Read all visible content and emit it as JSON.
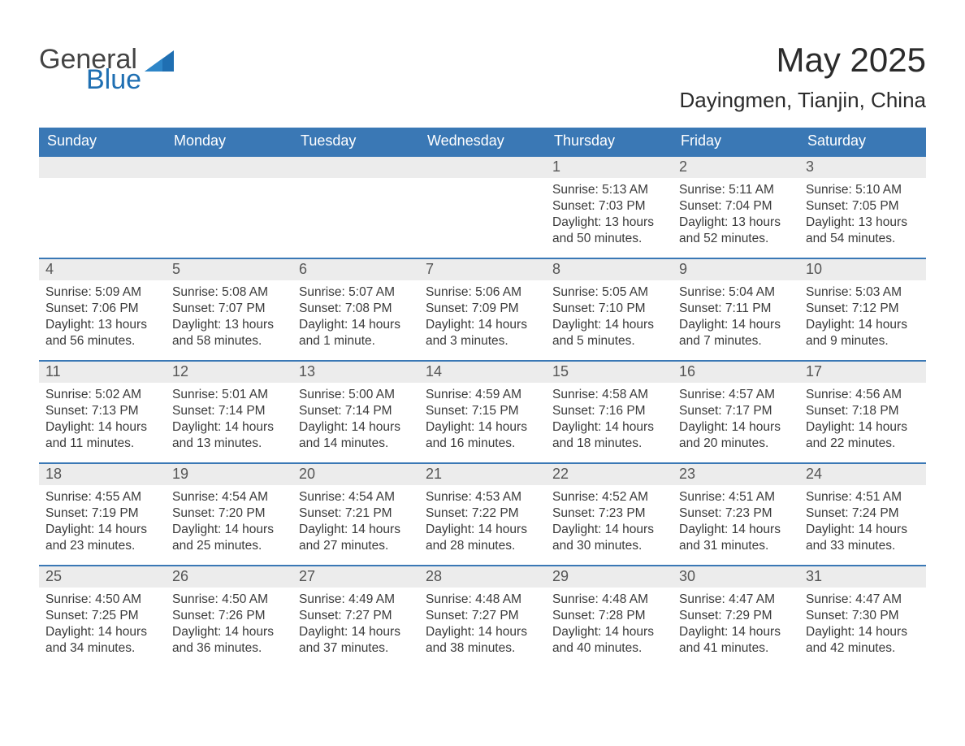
{
  "logo": {
    "word1": "General",
    "word2": "Blue"
  },
  "colors": {
    "header_bg": "#3a78b5",
    "header_text": "#ffffff",
    "daynum_bg": "#ececec",
    "text": "#3a3a3a",
    "logo_tri": "#1f6fb2",
    "week_border": "#3a78b5"
  },
  "title": "May 2025",
  "location": "Dayingmen, Tianjin, China",
  "days_of_week": [
    "Sunday",
    "Monday",
    "Tuesday",
    "Wednesday",
    "Thursday",
    "Friday",
    "Saturday"
  ],
  "weeks": [
    [
      {
        "empty": true
      },
      {
        "empty": true
      },
      {
        "empty": true
      },
      {
        "empty": true
      },
      {
        "n": "1",
        "sunrise": "5:13 AM",
        "sunset": "7:03 PM",
        "daylight": "13 hours and 50 minutes."
      },
      {
        "n": "2",
        "sunrise": "5:11 AM",
        "sunset": "7:04 PM",
        "daylight": "13 hours and 52 minutes."
      },
      {
        "n": "3",
        "sunrise": "5:10 AM",
        "sunset": "7:05 PM",
        "daylight": "13 hours and 54 minutes."
      }
    ],
    [
      {
        "n": "4",
        "sunrise": "5:09 AM",
        "sunset": "7:06 PM",
        "daylight": "13 hours and 56 minutes."
      },
      {
        "n": "5",
        "sunrise": "5:08 AM",
        "sunset": "7:07 PM",
        "daylight": "13 hours and 58 minutes."
      },
      {
        "n": "6",
        "sunrise": "5:07 AM",
        "sunset": "7:08 PM",
        "daylight": "14 hours and 1 minute."
      },
      {
        "n": "7",
        "sunrise": "5:06 AM",
        "sunset": "7:09 PM",
        "daylight": "14 hours and 3 minutes."
      },
      {
        "n": "8",
        "sunrise": "5:05 AM",
        "sunset": "7:10 PM",
        "daylight": "14 hours and 5 minutes."
      },
      {
        "n": "9",
        "sunrise": "5:04 AM",
        "sunset": "7:11 PM",
        "daylight": "14 hours and 7 minutes."
      },
      {
        "n": "10",
        "sunrise": "5:03 AM",
        "sunset": "7:12 PM",
        "daylight": "14 hours and 9 minutes."
      }
    ],
    [
      {
        "n": "11",
        "sunrise": "5:02 AM",
        "sunset": "7:13 PM",
        "daylight": "14 hours and 11 minutes."
      },
      {
        "n": "12",
        "sunrise": "5:01 AM",
        "sunset": "7:14 PM",
        "daylight": "14 hours and 13 minutes."
      },
      {
        "n": "13",
        "sunrise": "5:00 AM",
        "sunset": "7:14 PM",
        "daylight": "14 hours and 14 minutes."
      },
      {
        "n": "14",
        "sunrise": "4:59 AM",
        "sunset": "7:15 PM",
        "daylight": "14 hours and 16 minutes."
      },
      {
        "n": "15",
        "sunrise": "4:58 AM",
        "sunset": "7:16 PM",
        "daylight": "14 hours and 18 minutes."
      },
      {
        "n": "16",
        "sunrise": "4:57 AM",
        "sunset": "7:17 PM",
        "daylight": "14 hours and 20 minutes."
      },
      {
        "n": "17",
        "sunrise": "4:56 AM",
        "sunset": "7:18 PM",
        "daylight": "14 hours and 22 minutes."
      }
    ],
    [
      {
        "n": "18",
        "sunrise": "4:55 AM",
        "sunset": "7:19 PM",
        "daylight": "14 hours and 23 minutes."
      },
      {
        "n": "19",
        "sunrise": "4:54 AM",
        "sunset": "7:20 PM",
        "daylight": "14 hours and 25 minutes."
      },
      {
        "n": "20",
        "sunrise": "4:54 AM",
        "sunset": "7:21 PM",
        "daylight": "14 hours and 27 minutes."
      },
      {
        "n": "21",
        "sunrise": "4:53 AM",
        "sunset": "7:22 PM",
        "daylight": "14 hours and 28 minutes."
      },
      {
        "n": "22",
        "sunrise": "4:52 AM",
        "sunset": "7:23 PM",
        "daylight": "14 hours and 30 minutes."
      },
      {
        "n": "23",
        "sunrise": "4:51 AM",
        "sunset": "7:23 PM",
        "daylight": "14 hours and 31 minutes."
      },
      {
        "n": "24",
        "sunrise": "4:51 AM",
        "sunset": "7:24 PM",
        "daylight": "14 hours and 33 minutes."
      }
    ],
    [
      {
        "n": "25",
        "sunrise": "4:50 AM",
        "sunset": "7:25 PM",
        "daylight": "14 hours and 34 minutes."
      },
      {
        "n": "26",
        "sunrise": "4:50 AM",
        "sunset": "7:26 PM",
        "daylight": "14 hours and 36 minutes."
      },
      {
        "n": "27",
        "sunrise": "4:49 AM",
        "sunset": "7:27 PM",
        "daylight": "14 hours and 37 minutes."
      },
      {
        "n": "28",
        "sunrise": "4:48 AM",
        "sunset": "7:27 PM",
        "daylight": "14 hours and 38 minutes."
      },
      {
        "n": "29",
        "sunrise": "4:48 AM",
        "sunset": "7:28 PM",
        "daylight": "14 hours and 40 minutes."
      },
      {
        "n": "30",
        "sunrise": "4:47 AM",
        "sunset": "7:29 PM",
        "daylight": "14 hours and 41 minutes."
      },
      {
        "n": "31",
        "sunrise": "4:47 AM",
        "sunset": "7:30 PM",
        "daylight": "14 hours and 42 minutes."
      }
    ]
  ],
  "labels": {
    "sunrise": "Sunrise: ",
    "sunset": "Sunset: ",
    "daylight": "Daylight: "
  }
}
